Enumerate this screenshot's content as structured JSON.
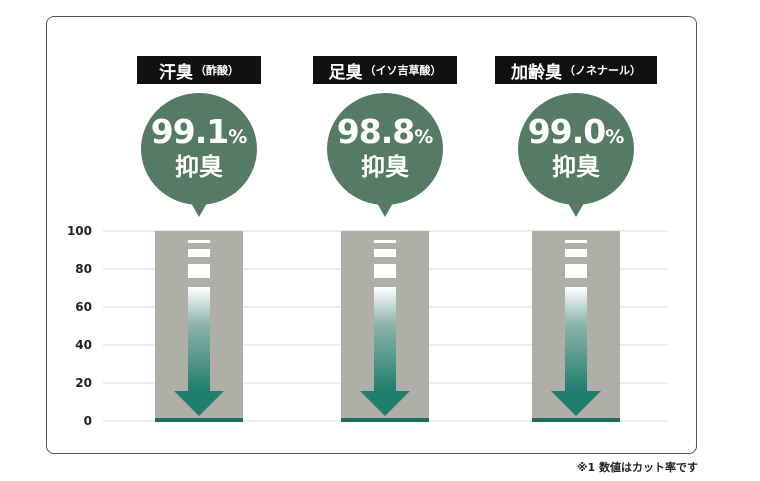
{
  "chart_data": {
    "type": "bar",
    "categories": [
      {
        "name": "汗臭",
        "sub": "（酢酸）"
      },
      {
        "name": "足臭",
        "sub": "（イソ吉草酸）"
      },
      {
        "name": "加齢臭",
        "sub": "（ノネナール）"
      }
    ],
    "values": [
      99.1,
      98.8,
      99.0
    ],
    "value_labels": [
      "99.1",
      "98.8",
      "99.0"
    ],
    "value_unit": "%",
    "value_caption": "抑臭",
    "ylim": [
      0,
      100
    ],
    "yticks": [
      "100",
      "80",
      "60",
      "40",
      "20",
      "0"
    ],
    "ytick_values": [
      100,
      80,
      60,
      40,
      20,
      0
    ],
    "grid": true,
    "colors": {
      "bar": "#b0afa7",
      "arrow": "#1f7e6c",
      "bubble": "#557a66",
      "label_bg": "#111111",
      "grid": "#d9d9d9",
      "baseline": "#1f6b5c"
    }
  },
  "footnote": "※1 数値はカット率です"
}
